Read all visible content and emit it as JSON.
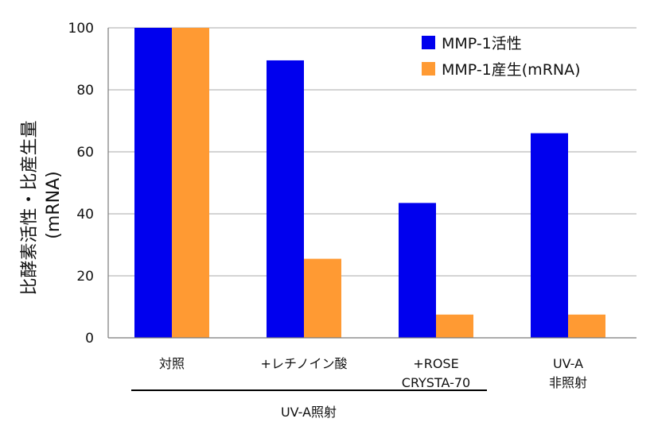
{
  "chart_data": {
    "type": "bar",
    "title": "",
    "ylabel_lines": [
      "比酵素活性・比産生量",
      "(mRNA)"
    ],
    "ylim": [
      0,
      100
    ],
    "yticks": [
      0,
      20,
      40,
      60,
      80,
      100
    ],
    "grid": true,
    "legend_position": "top-right",
    "categories": [
      [
        "対照"
      ],
      [
        "+レチノイン酸"
      ],
      [
        "+ROSE",
        "CRYSTA-70"
      ],
      [
        "UV-A",
        "非照射"
      ]
    ],
    "series": [
      {
        "name": "MMP-1活性",
        "color": "#0000ee",
        "values": [
          100,
          89.5,
          43.5,
          66
        ]
      },
      {
        "name": "MMP-1産生(mRNA)",
        "color": "#ff9a33",
        "values": [
          100,
          25.5,
          7.5,
          7.5
        ]
      }
    ],
    "group_annotation": "UV-A照射"
  }
}
